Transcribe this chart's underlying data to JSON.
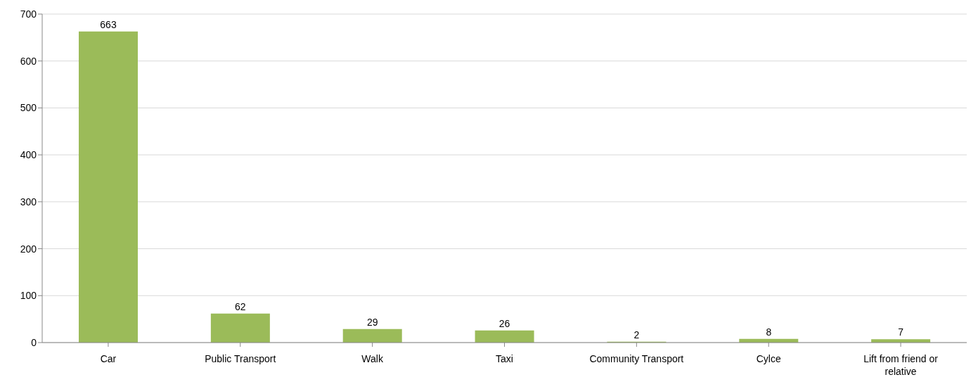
{
  "chart_data": {
    "type": "bar",
    "categories": [
      "Car",
      "Public Transport",
      "Walk",
      "Taxi",
      "Community Transport",
      "Cylce",
      "Lift from friend or relative"
    ],
    "values": [
      663,
      62,
      29,
      26,
      2,
      8,
      7
    ],
    "color": "#9bbb59",
    "ylim": [
      0,
      700
    ],
    "yticks": [
      0,
      100,
      200,
      300,
      400,
      500,
      600,
      700
    ],
    "grid": "y",
    "data_labels": true
  }
}
